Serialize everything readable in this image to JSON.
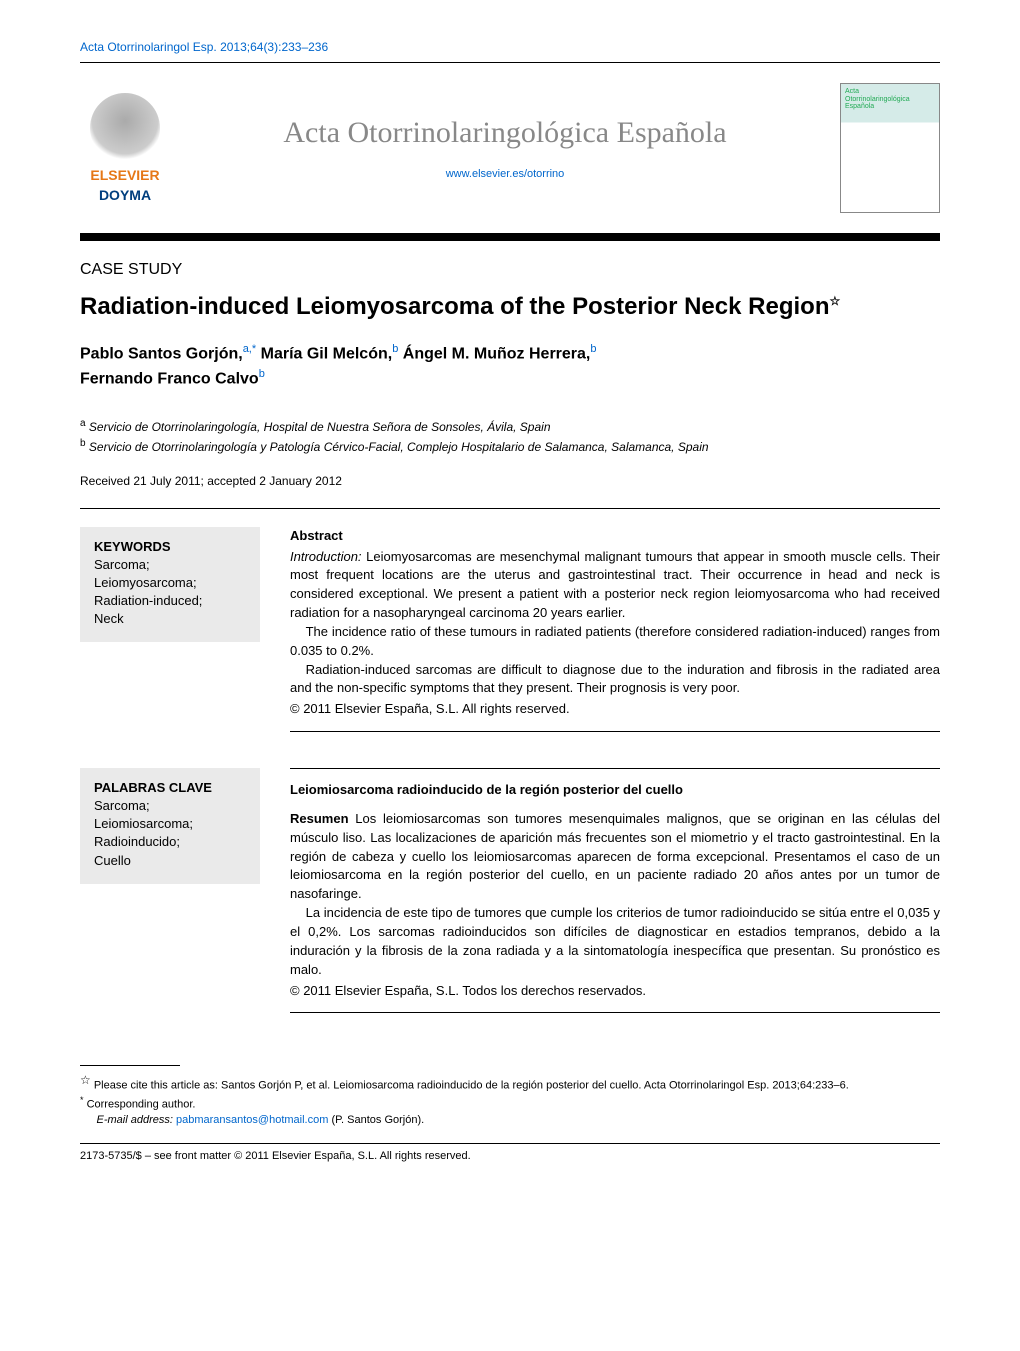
{
  "header": {
    "citation": "Acta Otorrinolaringol Esp. 2013;64(3):233–236",
    "elsevier_brand_top": "ELSEVIER",
    "elsevier_brand_bottom": "DOYMA",
    "journal_title": "Acta Otorrinolaringológica Española",
    "journal_url": "www.elsevier.es/otorrino",
    "cover_text_1": "Acta",
    "cover_text_2": "Otorrinolaringológica",
    "cover_text_3": "Española"
  },
  "article": {
    "section": "CASE STUDY",
    "title": "Radiation-induced Leiomyosarcoma of the Posterior Neck Region",
    "authors": [
      {
        "name": "Pablo Santos Gorjón,",
        "sup": "a,*"
      },
      {
        "name": " María Gil Melcón,",
        "sup": "b"
      },
      {
        "name": " Ángel M. Muñoz Herrera,",
        "sup": "b"
      },
      {
        "name": "Fernando Franco Calvo",
        "sup": "b"
      }
    ],
    "affiliations": [
      {
        "sup": "a",
        "text": " Servicio de Otorrinolaringología, Hospital de Nuestra Señora de Sonsoles, Ávila, Spain"
      },
      {
        "sup": "b",
        "text": " Servicio de Otorrinolaringología y Patología Cérvico-Facial, Complejo Hospitalario de Salamanca, Salamanca, Spain"
      }
    ],
    "dates": "Received 21 July 2011; accepted 2 January 2012"
  },
  "english": {
    "keywords_heading": "KEYWORDS",
    "keywords": "Sarcoma;\nLeiomyosarcoma;\nRadiation-induced;\nNeck",
    "abstract_heading": "Abstract",
    "intro_label": "Introduction:",
    "para1": " Leiomyosarcomas are mesenchymal malignant tumours that appear in smooth muscle cells. Their most frequent locations are the uterus and gastrointestinal tract. Their occurrence in head and neck is considered exceptional. We present a patient with a posterior neck region leiomyosarcoma who had received radiation for a nasopharyngeal carcinoma 20 years earlier.",
    "para2": "The incidence ratio of these tumours in radiated patients (therefore considered radiation-induced) ranges from 0.035 to 0.2%.",
    "para3": "Radiation-induced sarcomas are difficult to diagnose due to the induration and fibrosis in the radiated area and the non-specific symptoms that they present. Their prognosis is very poor.",
    "copyright": "© 2011 Elsevier España, S.L. All rights reserved."
  },
  "spanish": {
    "keywords_heading": "PALABRAS CLAVE",
    "keywords": "Sarcoma;\nLeiomiosarcoma;\nRadioinducido;\nCuello",
    "title": "Leiomiosarcoma radioinducido de la región posterior del cuello",
    "resumen_label": "Resumen",
    "para1": "   Los leiomiosarcomas son tumores mesenquimales malignos, que se originan en las células del músculo liso. Las localizaciones de aparición más frecuentes son el miometrio y el tracto gastrointestinal. En la región de cabeza y cuello los leiomiosarcomas aparecen de forma excepcional. Presentamos el caso de un leiomiosarcoma en la región posterior del cuello, en un paciente radiado 20 años antes por un tumor de nasofaringe.",
    "para2": "La incidencia de este tipo de tumores que cumple los criterios de tumor radioinducido se sitúa entre el 0,035 y el 0,2%. Los sarcomas radioinducidos son difíciles de diagnosticar en estadios tempranos, debido a la induración y la fibrosis de la zona radiada y a la sintomatología inespecífica que presentan. Su pronóstico es malo.",
    "copyright": "© 2011 Elsevier España, S.L. Todos los derechos reservados."
  },
  "footnotes": {
    "cite_as": " Please cite this article as: Santos Gorjón P, et al. Leiomiosarcoma radioinducido de la región posterior del cuello. Acta Otorrinolaringol Esp. 2013;64:233–6.",
    "corresponding": "Corresponding author.",
    "email_label": "E-mail address: ",
    "email": "pabmaransantos@hotmail.com",
    "email_after": " (P. Santos Gorjón).",
    "issn": "2173-5735/$ – see front matter © 2011 Elsevier España, S.L. All rights reserved."
  }
}
